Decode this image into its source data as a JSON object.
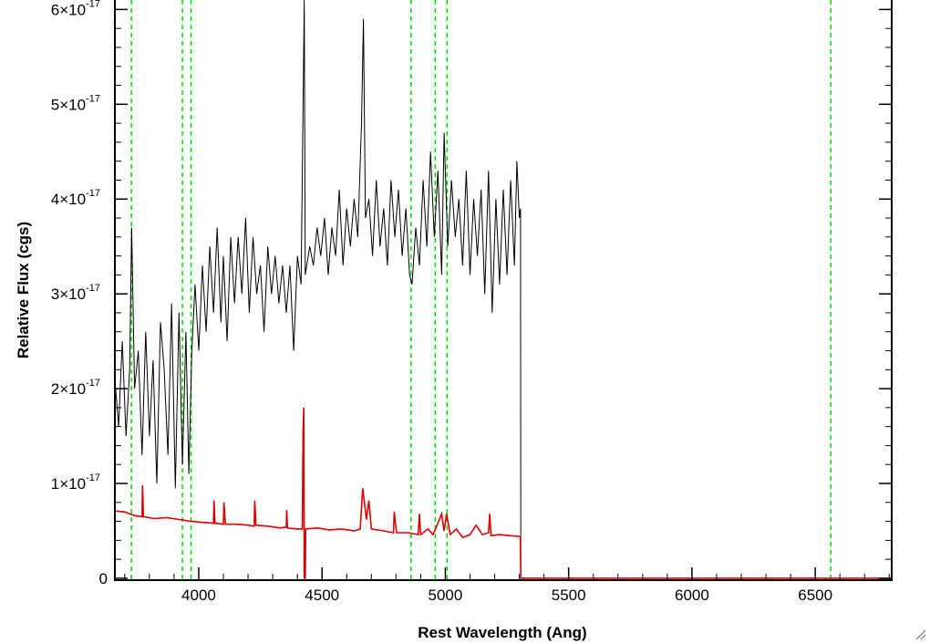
{
  "chart_data": {
    "type": "line",
    "title": "",
    "xlabel": "Rest Wavelength (Ang)",
    "ylabel": "Relative Flux (cgs)",
    "xlim": [
      3660,
      6810
    ],
    "ylim": [
      -2e-19,
      6.1e-17
    ],
    "grid": false,
    "legend": "none",
    "x_ticks": [
      {
        "value": 4000,
        "label": "4000"
      },
      {
        "value": 4500,
        "label": "4500"
      },
      {
        "value": 5000,
        "label": "5000"
      },
      {
        "value": 5500,
        "label": "5500"
      },
      {
        "value": 6000,
        "label": "6000"
      },
      {
        "value": 6500,
        "label": "6500"
      }
    ],
    "y_ticks": [
      {
        "value": 0,
        "mantissa": "0",
        "exponent": ""
      },
      {
        "value": 1e-17,
        "mantissa": "1×10",
        "exponent": "-17"
      },
      {
        "value": 2e-17,
        "mantissa": "2×10",
        "exponent": "-17"
      },
      {
        "value": 3e-17,
        "mantissa": "3×10",
        "exponent": "-17"
      },
      {
        "value": 4e-17,
        "mantissa": "4×10",
        "exponent": "-17"
      },
      {
        "value": 5e-17,
        "mantissa": "5×10",
        "exponent": "-17"
      },
      {
        "value": 6e-17,
        "mantissa": "6×10",
        "exponent": "-17"
      }
    ],
    "vertical_lines": {
      "color": "#00dd00",
      "style": "dashed",
      "x": [
        3727,
        3934,
        3969,
        4861,
        4959,
        5007,
        6563
      ]
    },
    "series": [
      {
        "color": "#000000",
        "points": [
          [
            3660,
            2.1e-17
          ],
          [
            3675,
            1.6e-17
          ],
          [
            3690,
            2.5e-17
          ],
          [
            3705,
            1.5e-17
          ],
          [
            3720,
            2.2e-17
          ],
          [
            3728,
            3.7e-17
          ],
          [
            3740,
            2e-17
          ],
          [
            3755,
            2.4e-17
          ],
          [
            3770,
            1.3e-17
          ],
          [
            3785,
            2.6e-17
          ],
          [
            3800,
            1.5e-17
          ],
          [
            3815,
            2.3e-17
          ],
          [
            3830,
            1e-17
          ],
          [
            3845,
            2.7e-17
          ],
          [
            3860,
            2.2e-17
          ],
          [
            3875,
            1.3e-17
          ],
          [
            3890,
            2.9e-17
          ],
          [
            3905,
            9.5e-18
          ],
          [
            3920,
            2.8e-17
          ],
          [
            3934,
            1.2e-17
          ],
          [
            3948,
            2.6e-17
          ],
          [
            3960,
            1.1e-17
          ],
          [
            3972,
            2.4e-17
          ],
          [
            3985,
            3.1e-17
          ],
          [
            4000,
            2.4e-17
          ],
          [
            4015,
            3.3e-17
          ],
          [
            4030,
            2.6e-17
          ],
          [
            4045,
            3.5e-17
          ],
          [
            4060,
            2.8e-17
          ],
          [
            4075,
            3.7e-17
          ],
          [
            4090,
            2.7e-17
          ],
          [
            4100,
            3.4e-17
          ],
          [
            4115,
            2.5e-17
          ],
          [
            4130,
            3.6e-17
          ],
          [
            4145,
            2.9e-17
          ],
          [
            4160,
            3.6e-17
          ],
          [
            4175,
            3e-17
          ],
          [
            4190,
            3.8e-17
          ],
          [
            4205,
            2.8e-17
          ],
          [
            4220,
            3.6e-17
          ],
          [
            4235,
            3e-17
          ],
          [
            4250,
            3.3e-17
          ],
          [
            4265,
            2.6e-17
          ],
          [
            4280,
            3.5e-17
          ],
          [
            4295,
            3e-17
          ],
          [
            4310,
            3.4e-17
          ],
          [
            4325,
            2.9e-17
          ],
          [
            4340,
            3.3e-17
          ],
          [
            4355,
            2.8e-17
          ],
          [
            4370,
            3.3e-17
          ],
          [
            4385,
            2.4e-17
          ],
          [
            4400,
            3.4e-17
          ],
          [
            4415,
            3.1e-17
          ],
          [
            4428,
            6.1e-17
          ],
          [
            4432,
            3.2e-17
          ],
          [
            4450,
            3.5e-17
          ],
          [
            4465,
            3.3e-17
          ],
          [
            4480,
            3.7e-17
          ],
          [
            4495,
            3.4e-17
          ],
          [
            4510,
            3.8e-17
          ],
          [
            4525,
            3.2e-17
          ],
          [
            4540,
            3.7e-17
          ],
          [
            4555,
            3.4e-17
          ],
          [
            4570,
            4.1e-17
          ],
          [
            4585,
            3.3e-17
          ],
          [
            4600,
            3.9e-17
          ],
          [
            4615,
            3.5e-17
          ],
          [
            4630,
            4e-17
          ],
          [
            4645,
            3.6e-17
          ],
          [
            4660,
            4.8e-17
          ],
          [
            4668,
            5.9e-17
          ],
          [
            4676,
            3.8e-17
          ],
          [
            4690,
            4e-17
          ],
          [
            4705,
            3.4e-17
          ],
          [
            4720,
            4.2e-17
          ],
          [
            4735,
            3.5e-17
          ],
          [
            4750,
            3.9e-17
          ],
          [
            4765,
            3.3e-17
          ],
          [
            4780,
            4.2e-17
          ],
          [
            4795,
            3.6e-17
          ],
          [
            4810,
            4.1e-17
          ],
          [
            4825,
            3.4e-17
          ],
          [
            4840,
            3.9e-17
          ],
          [
            4855,
            3.2e-17
          ],
          [
            4865,
            3.1e-17
          ],
          [
            4880,
            3.7e-17
          ],
          [
            4895,
            3.3e-17
          ],
          [
            4910,
            4.2e-17
          ],
          [
            4925,
            3.5e-17
          ],
          [
            4940,
            4.5e-17
          ],
          [
            4955,
            3.6e-17
          ],
          [
            4970,
            4.3e-17
          ],
          [
            4985,
            3.2e-17
          ],
          [
            4995,
            4.7e-17
          ],
          [
            5010,
            3.5e-17
          ],
          [
            5025,
            4.2e-17
          ],
          [
            5040,
            3.6e-17
          ],
          [
            5055,
            4e-17
          ],
          [
            5070,
            3.3e-17
          ],
          [
            5085,
            4.3e-17
          ],
          [
            5100,
            3.2e-17
          ],
          [
            5115,
            4e-17
          ],
          [
            5130,
            3.4e-17
          ],
          [
            5145,
            4.1e-17
          ],
          [
            5160,
            3e-17
          ],
          [
            5175,
            4.3e-17
          ],
          [
            5190,
            2.8e-17
          ],
          [
            5205,
            4e-17
          ],
          [
            5220,
            3.1e-17
          ],
          [
            5235,
            4.1e-17
          ],
          [
            5250,
            3.2e-17
          ],
          [
            5265,
            4.2e-17
          ],
          [
            5280,
            3.3e-17
          ],
          [
            5290,
            4.4e-17
          ],
          [
            5300,
            3.8e-17
          ],
          [
            5305,
            3.9e-17
          ],
          [
            5306,
            0
          ],
          [
            6810,
            0
          ]
        ]
      },
      {
        "color": "#dd0000",
        "points": [
          [
            3660,
            7.1e-18
          ],
          [
            3700,
            7e-18
          ],
          [
            3740,
            6.6e-18
          ],
          [
            3770,
            6.5e-18
          ],
          [
            3772,
            9.8e-18
          ],
          [
            3776,
            6.5e-18
          ],
          [
            3820,
            6.3e-18
          ],
          [
            3870,
            6.4e-18
          ],
          [
            3920,
            6.2e-18
          ],
          [
            3970,
            6e-18
          ],
          [
            4010,
            5.9e-18
          ],
          [
            4060,
            5.8e-18
          ],
          [
            4062,
            8.2e-18
          ],
          [
            4066,
            5.8e-18
          ],
          [
            4100,
            5.7e-18
          ],
          [
            4102,
            8e-18
          ],
          [
            4108,
            5.7e-18
          ],
          [
            4150,
            5.7e-18
          ],
          [
            4200,
            5.6e-18
          ],
          [
            4225,
            5.5e-18
          ],
          [
            4227,
            8.2e-18
          ],
          [
            4232,
            5.6e-18
          ],
          [
            4280,
            5.5e-18
          ],
          [
            4330,
            5.3e-18
          ],
          [
            4355,
            5.4e-18
          ],
          [
            4357,
            7.2e-18
          ],
          [
            4360,
            5.3e-18
          ],
          [
            4400,
            5.2e-18
          ],
          [
            4420,
            5.2e-18
          ],
          [
            4423,
            1.55e-17
          ],
          [
            4426,
            1.8e-17
          ],
          [
            4428,
            0
          ],
          [
            4432,
            0
          ],
          [
            4434,
            5.2e-18
          ],
          [
            4480,
            5.3e-18
          ],
          [
            4530,
            5.1e-18
          ],
          [
            4580,
            5.2e-18
          ],
          [
            4630,
            5e-18
          ],
          [
            4655,
            5.2e-18
          ],
          [
            4665,
            9.5e-18
          ],
          [
            4680,
            6.2e-18
          ],
          [
            4690,
            8.2e-18
          ],
          [
            4700,
            5.2e-18
          ],
          [
            4750,
            5e-18
          ],
          [
            4790,
            4.8e-18
          ],
          [
            4793,
            7e-18
          ],
          [
            4802,
            4.8e-18
          ],
          [
            4850,
            4.8e-18
          ],
          [
            4890,
            4.6e-18
          ],
          [
            4895,
            6.8e-18
          ],
          [
            4900,
            4.6e-18
          ],
          [
            4930,
            5.2e-18
          ],
          [
            4950,
            4.6e-18
          ],
          [
            4970,
            5.8e-18
          ],
          [
            4985,
            6.8e-18
          ],
          [
            4995,
            5e-18
          ],
          [
            5005,
            6.8e-18
          ],
          [
            5020,
            4.6e-18
          ],
          [
            5045,
            5.2e-18
          ],
          [
            5070,
            4.3e-18
          ],
          [
            5100,
            4.6e-18
          ],
          [
            5125,
            5.6e-18
          ],
          [
            5150,
            4.6e-18
          ],
          [
            5175,
            4.8e-18
          ],
          [
            5180,
            6.8e-18
          ],
          [
            5185,
            4.5e-18
          ],
          [
            5220,
            4.6e-18
          ],
          [
            5260,
            4.5e-18
          ],
          [
            5304,
            4.4e-18
          ],
          [
            5306,
            0
          ],
          [
            6810,
            0
          ]
        ]
      }
    ]
  }
}
